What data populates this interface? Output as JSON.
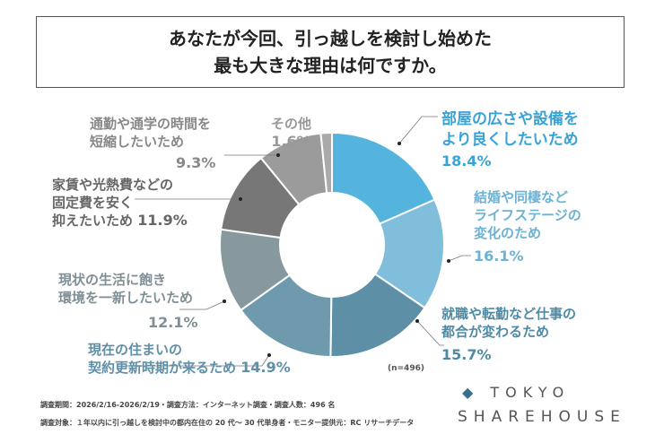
{
  "title": {
    "line1": "あなたが今回、引っ越しを検討し始めた",
    "line2": "最も大きな理由は何ですか。"
  },
  "chart_data": {
    "type": "pie",
    "donut": true,
    "n_label": "(n=496)",
    "slices": [
      {
        "label": "部屋の広さや設備をより良くしたいため",
        "value": 18.4,
        "pct": "18.4%",
        "color": "#55b4de"
      },
      {
        "label": "結婚や同棲などライフステージの変化のため",
        "value": 16.1,
        "pct": "16.1%",
        "color": "#80bedb"
      },
      {
        "label": "就職や転勤など仕事の都合が変わるため",
        "value": 15.7,
        "pct": "15.7%",
        "color": "#5d8fa6"
      },
      {
        "label": "現在の住まいの契約更新時期が来るため",
        "value": 14.9,
        "pct": "14.9%",
        "color": "#6f9aae"
      },
      {
        "label": "現状の生活に飽き環境を一新したいため",
        "value": 12.1,
        "pct": "12.1%",
        "color": "#87999f"
      },
      {
        "label": "家賃や光熱費などの固定費を安く抑えたいため",
        "value": 11.9,
        "pct": "11.9%",
        "color": "#777777"
      },
      {
        "label": "通勤や通学の時間を短縮したいため",
        "value": 9.3,
        "pct": "9.3%",
        "color": "#9b9b9b"
      },
      {
        "label": "その他",
        "value": 1.6,
        "pct": "1.6%",
        "color": "#aaaaaa"
      }
    ]
  },
  "labels": {
    "s0": [
      "部屋の広さや設備を",
      "より良くしたいため"
    ],
    "s1": [
      "結婚や同棲など",
      "ライフステージの",
      "変化のため"
    ],
    "s2": [
      "就職や転勤など仕事の",
      "都合が変わるため"
    ],
    "s3": [
      "現在の住まいの",
      "契約更新時期が来るため"
    ],
    "s4": [
      "現状の生活に飽き",
      "環境を一新したいため"
    ],
    "s5": [
      "家賃や光熱費などの",
      "固定費を安く",
      "抑えたいため"
    ],
    "s6": [
      "通勤や通学の時間を",
      "短縮したいため"
    ],
    "s7": [
      "その他"
    ]
  },
  "footer": {
    "line1": "調査期間：2026/2/16-2026/2/19・調査方法：インターネット調査・調査人数：496 名",
    "line2": "調査対象：１年以内に引っ越しを検討中の都内在住の 20 代～ 30 代単身者・モニター提供元：RC リサーチデータ"
  },
  "logo": {
    "line1": "TOKYO",
    "line2": "SHAREHOUSE"
  }
}
